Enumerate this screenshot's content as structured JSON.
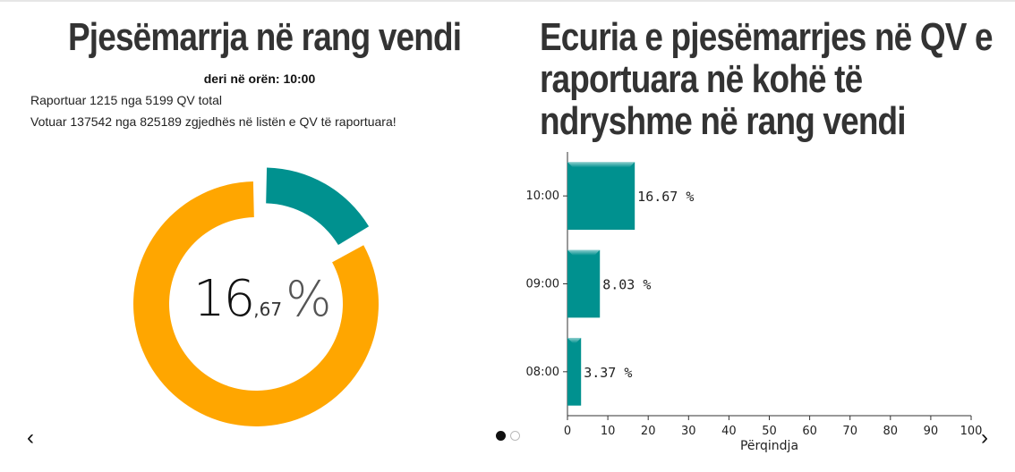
{
  "left": {
    "title": "Pjesëmarrja në rang vendi",
    "as_of_label": "deri në orën:",
    "as_of_time": "10:00",
    "reported_line": "Raportuar 1215 nga 5199 QV total",
    "voted_line": "Votuar 137542 nga 825189 zgjedhës në listën e QV të raportuara!",
    "big_integer": "16",
    "big_decimal": ",67",
    "big_symbol": "%"
  },
  "right": {
    "title_lines": [
      "Ecuria e pjesëmarrjes në QV e",
      "raportuara në kohë të",
      "ndryshme në rang vendi"
    ]
  },
  "colors": {
    "teal": "#00918f",
    "orange": "#ffa600"
  },
  "nav": {
    "prev": "‹",
    "next": "›"
  },
  "chart_data": [
    {
      "type": "pie",
      "labels": [
        "",
        ""
      ],
      "values": [
        16.67,
        83.33
      ],
      "colors": [
        "#00918f",
        "#ffa600"
      ]
    },
    {
      "type": "bar",
      "orientation": "horizontal",
      "categories": [
        "10:00",
        "09:00",
        "08:00"
      ],
      "values": [
        16.67,
        8.03,
        3.37
      ],
      "value_labels": [
        "16.67 %",
        "8.03 %",
        "3.37 %"
      ],
      "xlabel": "Përqindja",
      "xlim": [
        0,
        100
      ],
      "xticks": [
        0,
        10,
        20,
        30,
        40,
        50,
        60,
        70,
        80,
        90,
        100
      ],
      "color": "#00918f"
    }
  ]
}
